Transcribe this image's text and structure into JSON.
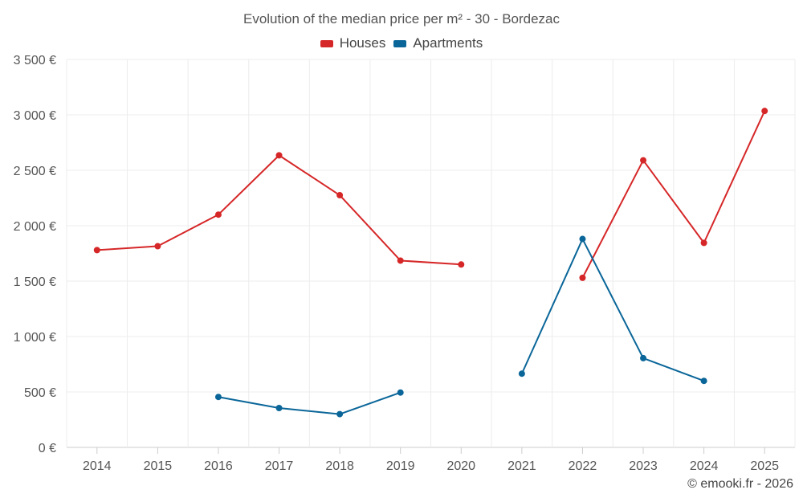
{
  "chart_data": {
    "type": "line",
    "title": "Evolution of the median price per m² - 30 - Bordezac",
    "credit": "© emooki.fr - 2026",
    "categories": [
      "2014",
      "2015",
      "2016",
      "2017",
      "2018",
      "2019",
      "2020",
      "2021",
      "2022",
      "2023",
      "2024",
      "2025"
    ],
    "y_ticks": [
      0,
      500,
      1000,
      1500,
      2000,
      2500,
      3000,
      3500
    ],
    "y_tick_labels": [
      "0 €",
      "500 €",
      "1 000 €",
      "1 500 €",
      "2 000 €",
      "2 500 €",
      "3 000 €",
      "3 500 €"
    ],
    "ylim": [
      0,
      3500
    ],
    "grid": true,
    "legend_position": "top-center",
    "series": [
      {
        "name": "Houses",
        "color": "#d62728",
        "values": [
          1780,
          1815,
          2100,
          2635,
          2275,
          1685,
          1650,
          null,
          1530,
          2590,
          1845,
          3035
        ]
      },
      {
        "name": "Apartments",
        "color": "#0a6699",
        "values": [
          null,
          null,
          455,
          355,
          300,
          495,
          null,
          665,
          1880,
          805,
          600,
          null
        ]
      }
    ]
  }
}
